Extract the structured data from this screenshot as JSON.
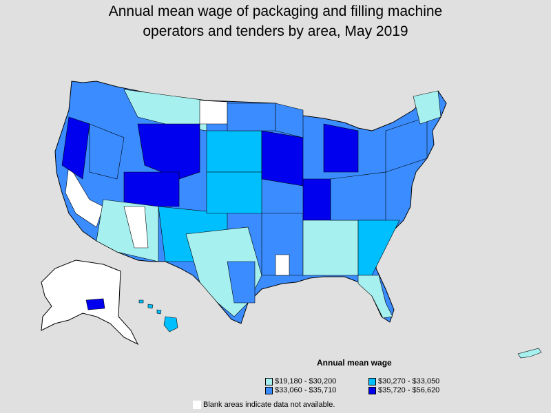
{
  "title_line1": "Annual mean wage of packaging and filling machine",
  "title_line2": "operators and tenders by area, May 2019",
  "legend": {
    "title": "Annual mean wage",
    "items": [
      {
        "label": "$19,180 - $30,200",
        "color": "#a6f0f0"
      },
      {
        "label": "$30,270 - $33,050",
        "color": "#00bfff"
      },
      {
        "label": "$33,060 - $35,710",
        "color": "#3a8cff"
      },
      {
        "label": "$35,720 - $56,620",
        "color": "#0000ee"
      }
    ]
  },
  "blank_note": "Blank areas indicate data not available.",
  "colors": {
    "background": "#e0e0e0",
    "blank": "#ffffff",
    "border": "#000000"
  }
}
